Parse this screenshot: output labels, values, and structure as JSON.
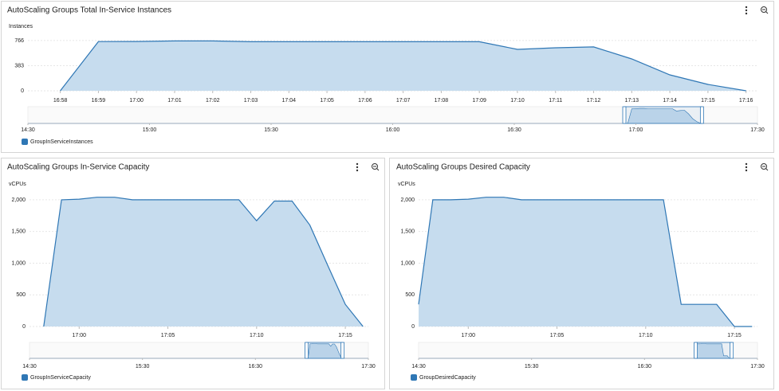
{
  "chart_data": [
    {
      "type": "area",
      "title": "AutoScaling Groups Total In-Service Instances",
      "y_label": "Instances",
      "x": [
        1018,
        1019,
        1020,
        1021,
        1022,
        1023,
        1024,
        1025,
        1026,
        1027,
        1028,
        1029,
        1030,
        1031,
        1032,
        1033,
        1034,
        1035,
        1036
      ],
      "series": [
        {
          "name": "GroupInServiceInstances",
          "color": "#2f77b5",
          "fill": "#c6dcee",
          "values": [
            0,
            750,
            752,
            760,
            760,
            748,
            748,
            748,
            748,
            748,
            748,
            748,
            632,
            656,
            669,
            486,
            243,
            97,
            0
          ]
        }
      ],
      "xlim": [
        1017.15,
        1036.3
      ],
      "xticks": [
        {
          "value": 1018,
          "label": "16:58"
        },
        {
          "value": 1019,
          "label": "16:59"
        },
        {
          "value": 1020,
          "label": "17:00"
        },
        {
          "value": 1021,
          "label": "17:01"
        },
        {
          "value": 1022,
          "label": "17:02"
        },
        {
          "value": 1023,
          "label": "17:03"
        },
        {
          "value": 1024,
          "label": "17:04"
        },
        {
          "value": 1025,
          "label": "17:05"
        },
        {
          "value": 1026,
          "label": "17:06"
        },
        {
          "value": 1027,
          "label": "17:07"
        },
        {
          "value": 1028,
          "label": "17:08"
        },
        {
          "value": 1029,
          "label": "17:09"
        },
        {
          "value": 1030,
          "label": "17:10"
        },
        {
          "value": 1031,
          "label": "17:11"
        },
        {
          "value": 1032,
          "label": "17:12"
        },
        {
          "value": 1033,
          "label": "17:13"
        },
        {
          "value": 1034,
          "label": "17:14"
        },
        {
          "value": 1035,
          "label": "17:15"
        },
        {
          "value": 1036,
          "label": "17:16"
        }
      ],
      "ylim": [
        0,
        850
      ],
      "yticks": [
        0,
        383,
        766
      ],
      "grid": true,
      "navigator": {
        "xlim": [
          870,
          1050
        ],
        "xticks": [
          {
            "value": 870,
            "label": "14:30"
          },
          {
            "value": 900,
            "label": "15:00"
          },
          {
            "value": 930,
            "label": "15:30"
          },
          {
            "value": 960,
            "label": "16:00"
          },
          {
            "value": 990,
            "label": "16:30"
          },
          {
            "value": 1020,
            "label": "17:00"
          },
          {
            "value": 1050,
            "label": "17:30"
          }
        ]
      }
    },
    {
      "type": "area",
      "title": "AutoScaling Groups In-Service Capacity",
      "y_label": "vCPUs",
      "x": [
        1018,
        1019,
        1020,
        1021,
        1022,
        1023,
        1024,
        1025,
        1026,
        1027,
        1028,
        1029,
        1030,
        1031,
        1032,
        1033,
        1034,
        1035,
        1036
      ],
      "series": [
        {
          "name": "GroupInServiceCapacity",
          "color": "#2f77b5",
          "fill": "#c6dcee",
          "values": [
            0,
            2000,
            2010,
            2040,
            2040,
            2000,
            2000,
            2000,
            2000,
            2000,
            2000,
            2000,
            1670,
            1980,
            1980,
            1600,
            970,
            350,
            0
          ]
        }
      ],
      "xlim": [
        1017.2,
        1036.3
      ],
      "xticks": [
        {
          "value": 1020,
          "label": "17:00"
        },
        {
          "value": 1025,
          "label": "17:05"
        },
        {
          "value": 1030,
          "label": "17:10"
        },
        {
          "value": 1035,
          "label": "17:15"
        }
      ],
      "ylim": [
        0,
        2200
      ],
      "yticks": [
        0,
        500,
        {
          "value": 1000,
          "label": "1,000"
        },
        {
          "value": 1500,
          "label": "1,500"
        },
        {
          "value": 2000,
          "label": "2,000"
        }
      ],
      "grid": true,
      "navigator": {
        "xlim": [
          870,
          1050
        ],
        "xticks": [
          {
            "value": 870,
            "label": "14:30"
          },
          {
            "value": 930,
            "label": "15:30"
          },
          {
            "value": 990,
            "label": "16:30"
          },
          {
            "value": 1050,
            "label": "17:30"
          }
        ]
      }
    },
    {
      "type": "area",
      "title": "AutoScaling Groups Desired Capacity",
      "y_label": "vCPUs",
      "x": [
        1017.2,
        1018,
        1019,
        1020,
        1021,
        1022,
        1023,
        1024,
        1025,
        1026,
        1027,
        1028,
        1029,
        1030,
        1031,
        1032,
        1033,
        1034,
        1035,
        1036
      ],
      "series": [
        {
          "name": "GroupDesiredCapacity",
          "color": "#2f77b5",
          "fill": "#c6dcee",
          "values": [
            350,
            2000,
            2000,
            2010,
            2040,
            2040,
            2000,
            2000,
            2000,
            2000,
            2000,
            2000,
            2000,
            2000,
            2000,
            350,
            350,
            350,
            0,
            0
          ]
        }
      ],
      "xlim": [
        1017.2,
        1036.3
      ],
      "xticks": [
        {
          "value": 1020,
          "label": "17:00"
        },
        {
          "value": 1025,
          "label": "17:05"
        },
        {
          "value": 1030,
          "label": "17:10"
        },
        {
          "value": 1035,
          "label": "17:15"
        }
      ],
      "ylim": [
        0,
        2200
      ],
      "yticks": [
        0,
        500,
        {
          "value": 1000,
          "label": "1,000"
        },
        {
          "value": 1500,
          "label": "1,500"
        },
        {
          "value": 2000,
          "label": "2,000"
        }
      ],
      "grid": true,
      "navigator": {
        "xlim": [
          870,
          1050
        ],
        "xticks": [
          {
            "value": 870,
            "label": "14:30"
          },
          {
            "value": 930,
            "label": "15:30"
          },
          {
            "value": 990,
            "label": "16:30"
          },
          {
            "value": 1050,
            "label": "17:30"
          }
        ]
      }
    }
  ]
}
